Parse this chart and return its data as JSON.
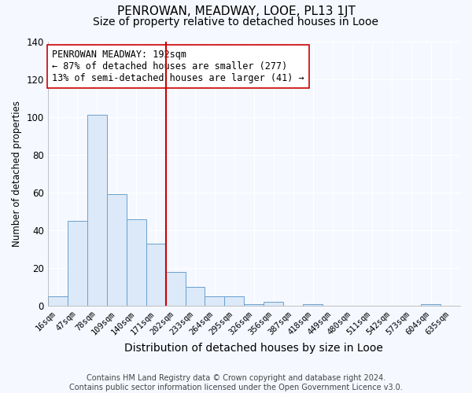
{
  "title": "PENROWAN, MEADWAY, LOOE, PL13 1JT",
  "subtitle": "Size of property relative to detached houses in Looe",
  "xlabel": "Distribution of detached houses by size in Looe",
  "ylabel": "Number of detached properties",
  "categories": [
    "16sqm",
    "47sqm",
    "78sqm",
    "109sqm",
    "140sqm",
    "171sqm",
    "202sqm",
    "233sqm",
    "264sqm",
    "295sqm",
    "326sqm",
    "356sqm",
    "387sqm",
    "418sqm",
    "449sqm",
    "480sqm",
    "511sqm",
    "542sqm",
    "573sqm",
    "604sqm",
    "635sqm"
  ],
  "values": [
    5,
    45,
    101,
    59,
    46,
    33,
    18,
    10,
    5,
    5,
    1,
    2,
    0,
    1,
    0,
    0,
    0,
    0,
    0,
    1,
    0
  ],
  "bar_color": "#dce9f8",
  "bar_edge_color": "#6aa0cc",
  "property_line_x": 5.5,
  "property_line_color": "#cc0000",
  "annotation_text": "PENROWAN MEADWAY: 192sqm\n← 87% of detached houses are smaller (277)\n13% of semi-detached houses are larger (41) →",
  "annotation_box_color": "white",
  "annotation_box_edge_color": "#cc0000",
  "ylim": [
    0,
    140
  ],
  "footnote": "Contains HM Land Registry data © Crown copyright and database right 2024.\nContains public sector information licensed under the Open Government Licence v3.0.",
  "background_color": "#f5f8ff",
  "plot_bg_color": "#f5f8ff",
  "grid_color": "white",
  "title_fontsize": 11,
  "subtitle_fontsize": 10,
  "xlabel_fontsize": 10,
  "ylabel_fontsize": 8.5,
  "tick_fontsize": 7.5,
  "footnote_fontsize": 7,
  "annotation_fontsize": 8.5
}
